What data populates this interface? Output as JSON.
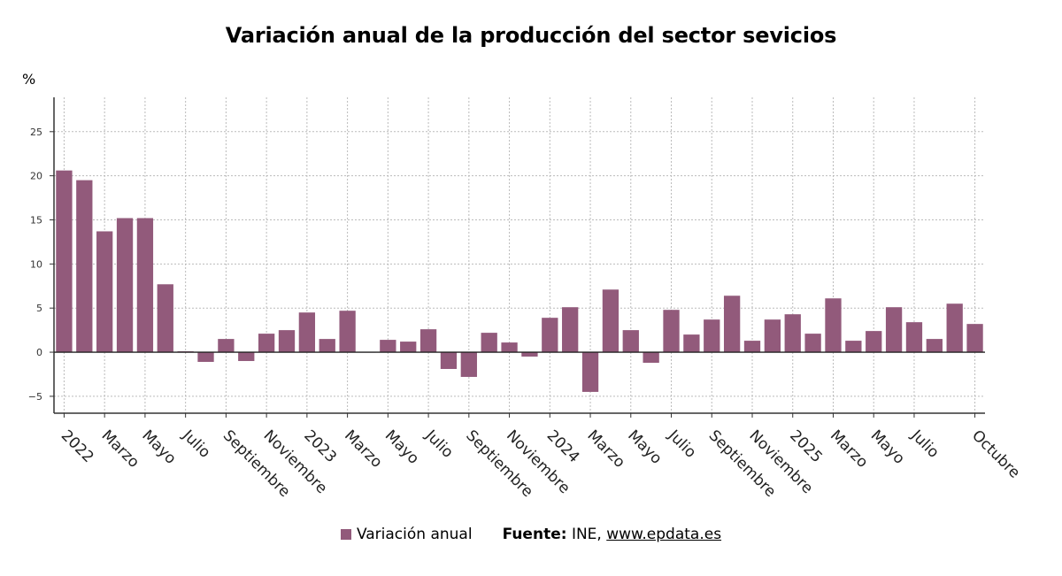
{
  "chart_data": {
    "type": "bar",
    "title": "Variación anual de la producción del sector sevicios",
    "ylabel": "%",
    "ylim": [
      -7,
      29
    ],
    "yticks": [
      -5,
      0,
      5,
      10,
      15,
      20,
      25
    ],
    "grid": true,
    "legend_position": "bottom",
    "x": [
      "2022-01",
      "2022-02",
      "2022-03",
      "2022-04",
      "2022-05",
      "2022-06",
      "2022-07",
      "2022-08",
      "2022-09",
      "2022-10",
      "2022-11",
      "2022-12",
      "2023-01",
      "2023-02",
      "2023-03",
      "2023-04",
      "2023-05",
      "2023-06",
      "2023-07",
      "2023-08",
      "2023-09",
      "2023-10",
      "2023-11",
      "2023-12",
      "2024-01",
      "2024-02",
      "2024-03",
      "2024-04",
      "2024-05",
      "2024-06",
      "2024-07",
      "2024-08",
      "2024-09",
      "2024-10",
      "2024-11",
      "2024-12",
      "2025-01",
      "2025-02",
      "2025-03",
      "2025-04",
      "2025-05",
      "2025-06",
      "2025-07",
      "2025-08",
      "2025-09",
      "2025-10"
    ],
    "tick_labels": [
      {
        "x": "2022-01",
        "label": "2022"
      },
      {
        "x": "2022-03",
        "label": "Marzo"
      },
      {
        "x": "2022-05",
        "label": "Mayo"
      },
      {
        "x": "2022-07",
        "label": "Julio"
      },
      {
        "x": "2022-09",
        "label": "Septiembre"
      },
      {
        "x": "2022-11",
        "label": "Noviembre"
      },
      {
        "x": "2023-01",
        "label": "2023"
      },
      {
        "x": "2023-03",
        "label": "Marzo"
      },
      {
        "x": "2023-05",
        "label": "Mayo"
      },
      {
        "x": "2023-07",
        "label": "Julio"
      },
      {
        "x": "2023-09",
        "label": "Septiembre"
      },
      {
        "x": "2023-11",
        "label": "Noviembre"
      },
      {
        "x": "2024-01",
        "label": "2024"
      },
      {
        "x": "2024-03",
        "label": "Marzo"
      },
      {
        "x": "2024-05",
        "label": "Mayo"
      },
      {
        "x": "2024-07",
        "label": "Julio"
      },
      {
        "x": "2024-09",
        "label": "Septiembre"
      },
      {
        "x": "2024-11",
        "label": "Noviembre"
      },
      {
        "x": "2025-01",
        "label": "2025"
      },
      {
        "x": "2025-03",
        "label": "Marzo"
      },
      {
        "x": "2025-05",
        "label": "Mayo"
      },
      {
        "x": "2025-07",
        "label": "Julio"
      },
      {
        "x": "2025-10",
        "label": "Octubre"
      }
    ],
    "series": [
      {
        "name": "Variación anual",
        "color": "#925a7b",
        "values": [
          20.6,
          19.5,
          13.7,
          15.2,
          15.2,
          7.7,
          0.1,
          -1.1,
          1.5,
          -1.0,
          2.1,
          2.5,
          4.5,
          1.5,
          4.7,
          0.0,
          1.4,
          1.2,
          2.6,
          -1.9,
          -2.8,
          2.2,
          1.1,
          -0.5,
          3.9,
          5.1,
          -4.5,
          7.1,
          2.5,
          -1.2,
          4.8,
          2.0,
          3.7,
          6.4,
          1.3,
          3.7,
          4.3,
          2.1,
          6.1,
          1.3,
          2.4,
          5.1,
          3.4,
          1.5,
          5.5,
          3.2
        ]
      }
    ]
  },
  "footer": {
    "legend_label": "Variación anual",
    "source_label": "Fuente:",
    "source_text": "INE,",
    "source_link": "www.epdata.es"
  }
}
